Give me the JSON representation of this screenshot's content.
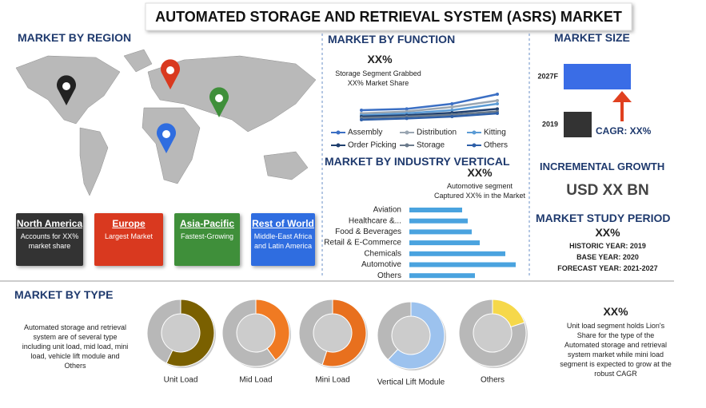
{
  "header": {
    "title": "AUTOMATED STORAGE AND RETRIEVAL SYSTEM (ASRS) MARKET"
  },
  "region": {
    "title": "MARKET BY REGION",
    "cards": [
      {
        "name": "North America",
        "text": "Accounts for XX% market share"
      },
      {
        "name": "Europe",
        "text": "Largest Market"
      },
      {
        "name": "Asia-Pacific",
        "text": "Fastest-Growing"
      },
      {
        "name": "Rest of World",
        "text": "Middle-East Africa and Latin America"
      }
    ]
  },
  "function": {
    "title": "MARKET BY FUNCTION",
    "highlight": "XX%",
    "note": "Storage Segment  Grabbed XX% Market Share"
  },
  "industry": {
    "title": "MARKET BY  INDUSTRY VERTICAL",
    "highlight": "XX%",
    "note": "Automotive segment Captured XX% in the Market"
  },
  "size": {
    "title": "MARKET SIZE",
    "cagr": "CAGR: XX%"
  },
  "growth": {
    "title": "INCREMENTAL GROWTH",
    "value": "USD XX BN"
  },
  "period": {
    "title": "MARKET STUDY PERIOD",
    "highlight": "XX%",
    "lines": [
      "HISTORIC YEAR: 2019",
      "BASE YEAR: 2020",
      "FORECAST YEAR: 2021-2027"
    ]
  },
  "type": {
    "title": "MARKET BY TYPE",
    "description": "Automated storage and retrieval system are of several type including unit load, mid load, mini load, vehicle lift module and Others",
    "highlight": "XX%",
    "note": "Unit load segment holds Lion's Share for the type of the Automated storage and retrieval system market while mini load segment is expected to grow at the robust CAGR"
  },
  "chart_data": [
    {
      "type": "line",
      "categories": [
        null,
        null,
        null,
        null
      ],
      "series": [
        {
          "name": "Assembly",
          "color": "#3b6fc4",
          "values": [
            3,
            3.2,
            4,
            5.5
          ]
        },
        {
          "name": "Distribution",
          "color": "#9aa6b2",
          "values": [
            2.5,
            2.8,
            3.5,
            4.5
          ]
        },
        {
          "name": "Kitting",
          "color": "#5b9bd5",
          "values": [
            2.2,
            2.5,
            3,
            4
          ]
        },
        {
          "name": "Order Picking",
          "color": "#1f3f6e",
          "values": [
            2,
            2.2,
            2.6,
            3.2
          ]
        },
        {
          "name": "Storage",
          "color": "#6b7b8c",
          "values": [
            1.8,
            2,
            2.3,
            2.8
          ]
        },
        {
          "name": "Others",
          "color": "#2e5fa8",
          "values": [
            1.5,
            1.7,
            2,
            2.5
          ]
        }
      ]
    },
    {
      "type": "hbar",
      "categories": [
        "Aviation",
        "Healthcare &...",
        "Food & Beverages",
        "Retail & E-Commerce",
        "Chemicals",
        "Automotive",
        "Others"
      ],
      "values": [
        66,
        73,
        78,
        88,
        120,
        133,
        82
      ],
      "color": "#4aa3df"
    },
    {
      "type": "hbar-size",
      "categories": [
        "2027F",
        "2019"
      ],
      "values": [
        2.4,
        1
      ],
      "colors": [
        "#3a6de6",
        "#333333"
      ]
    },
    {
      "type": "pie",
      "title": "Unit Load",
      "values": [
        57,
        43
      ],
      "colors": [
        "#7a6000",
        "#b8b8b8"
      ]
    },
    {
      "type": "pie",
      "title": "Mid Load",
      "values": [
        40,
        60
      ],
      "colors": [
        "#f07a22",
        "#b8b8b8"
      ]
    },
    {
      "type": "pie",
      "title": "Mini Load",
      "values": [
        55,
        45
      ],
      "colors": [
        "#e8701e",
        "#b8b8b8"
      ]
    },
    {
      "type": "pie",
      "title": "Vertical Lift Module",
      "values": [
        62,
        38
      ],
      "colors": [
        "#9cc2ee",
        "#b8b8b8"
      ]
    },
    {
      "type": "pie",
      "title": "Others",
      "values": [
        20,
        80
      ],
      "colors": [
        "#f6d84a",
        "#b8b8b8"
      ]
    }
  ]
}
